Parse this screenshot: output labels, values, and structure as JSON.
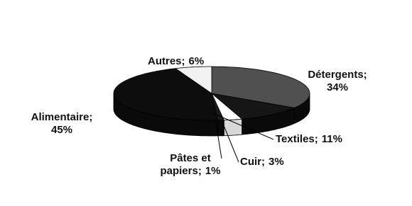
{
  "chart_data": {
    "type": "pie",
    "categories": [
      "Détergents;",
      "Textiles;",
      "Cuir;",
      "Pâtes et papiers;",
      "Alimentaire;",
      "Autres;"
    ],
    "values": [
      34,
      11,
      3,
      1,
      45,
      6
    ],
    "value_labels": [
      "34%",
      "11%",
      "3%",
      "1%",
      "45%",
      "6%"
    ],
    "colors": [
      "#505050",
      "#161616",
      "#ffffff",
      "#1c1c1c",
      "#0d0d0d",
      "#f2f2f2"
    ]
  }
}
